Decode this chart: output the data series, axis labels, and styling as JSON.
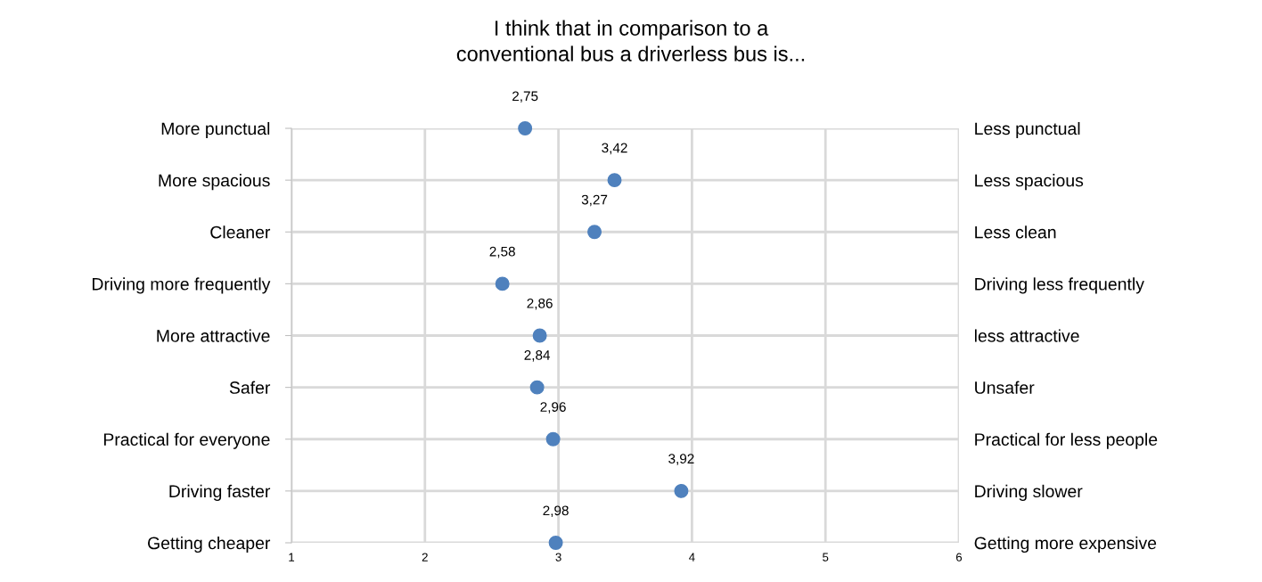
{
  "chart_data": {
    "type": "scatter",
    "orientation": "horizontal",
    "title": "I think that in comparison to a\nconventional bus a driverless bus is...",
    "categories": [
      "More punctual",
      "More spacious",
      "Cleaner",
      "Driving more frequently",
      "More attractive",
      "Safer",
      "Practical for everyone",
      "Driving faster",
      "Getting cheaper"
    ],
    "y2_categories": [
      "Less punctual",
      "Less spacious",
      "Less clean",
      "Driving less frequently",
      "less attractive",
      "Unsafer",
      "Practical for less people",
      "Driving slower",
      "Getting more expensive"
    ],
    "values": [
      2.75,
      3.42,
      3.27,
      2.58,
      2.86,
      2.84,
      2.96,
      3.92,
      2.98
    ],
    "value_labels": [
      "2,75",
      "3,42",
      "3,27",
      "2,58",
      "2,86",
      "2,84",
      "2,96",
      "3,92",
      "2,98"
    ],
    "color": "#4f81bd",
    "marker": "circle",
    "xlim": [
      1,
      6
    ],
    "xticks": [
      1,
      2,
      3,
      4,
      5,
      6
    ],
    "grid": true
  }
}
